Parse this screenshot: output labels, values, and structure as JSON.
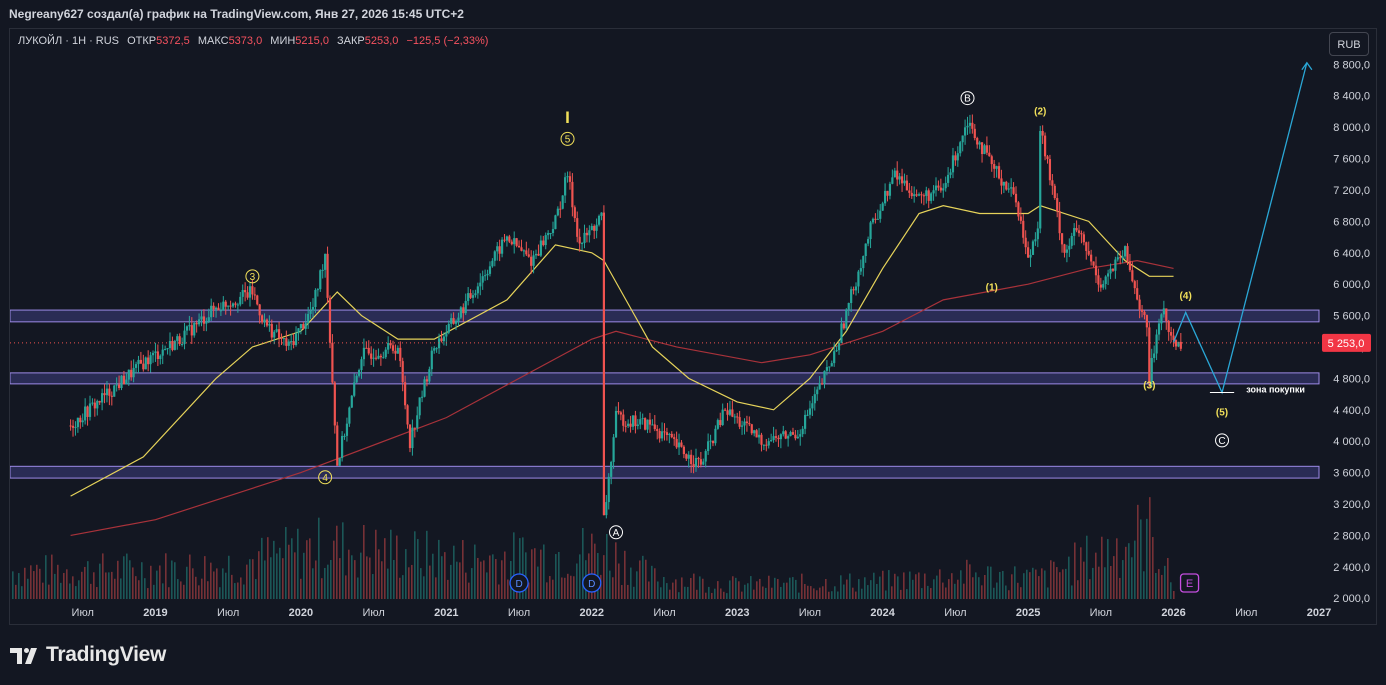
{
  "header": {
    "attribution": "Negreany627 создал(а) график на TradingView.com, Янв 27, 2026 15:45 UTC+2"
  },
  "legend": {
    "symbol": "ЛУКОЙЛ · 1H · RUS",
    "open_label": "ОТКР",
    "open": "5372,5",
    "high_label": "МАКС",
    "high": "5373,0",
    "low_label": "МИН",
    "low": "5215,0",
    "close_label": "ЗАКР",
    "close": "5253,0",
    "change": "−125,5 (−2,33%)"
  },
  "currency_button": "RUB",
  "footer": {
    "logo_text": "TradingView"
  },
  "colors": {
    "background": "#131722",
    "up": "#26a69a",
    "down": "#ef5350",
    "ma_fast": "#e6d35a",
    "ma_slow": "#a8323a",
    "zone_fill": "#2a2c55",
    "zone_border": "#9c8ae6",
    "projection": "#2aa7d6",
    "wave_label": "#f1e05a"
  },
  "chart_data": {
    "type": "candlestick",
    "series": [
      {
        "name": "ЛУКОЙЛ",
        "kind": "price",
        "path_x": [
          "2018-06",
          "2018-09",
          "2018-12",
          "2019-03",
          "2019-06",
          "2019-09",
          "2019-10",
          "2019-12",
          "2020-02",
          "2020-03",
          "2020-04",
          "2020-06",
          "2020-09",
          "2020-10",
          "2020-12",
          "2021-02",
          "2021-04",
          "2021-06",
          "2021-08",
          "2021-10",
          "2021-11",
          "2021-12",
          "2022-01",
          "2022-02",
          "2022-02",
          "2022-03",
          "2022-06",
          "2022-09",
          "2022-10",
          "2022-12",
          "2023-03",
          "2023-06",
          "2023-07",
          "2023-09",
          "2023-12",
          "2024-02",
          "2024-04",
          "2024-06",
          "2024-08",
          "2024-09",
          "2024-10",
          "2024-12",
          "2025-01",
          "2025-02",
          "2025-02",
          "2025-04",
          "2025-05",
          "2025-07",
          "2025-09",
          "2025-11",
          "2025-11",
          "2025-12",
          "2026-01"
        ],
        "path_y": [
          4200,
          4600,
          5000,
          5300,
          5700,
          5900,
          5500,
          5200,
          5700,
          6400,
          3700,
          5100,
          5200,
          4000,
          5200,
          5600,
          6100,
          6600,
          6300,
          6800,
          7400,
          6500,
          6700,
          6900,
          3000,
          4300,
          4200,
          3800,
          3700,
          4400,
          4000,
          4100,
          4400,
          5100,
          6700,
          7400,
          7100,
          7200,
          8100,
          7800,
          7500,
          7100,
          6300,
          6900,
          8000,
          6400,
          6700,
          6000,
          6400,
          5300,
          4800,
          5700,
          5250
        ],
        "ohlc_last": {
          "open": 5372.5,
          "high": 5373.0,
          "low": 5215.0,
          "close": 5253.0
        }
      },
      {
        "name": "",
        "kind": "moving_average_fast",
        "x": [
          "2018-06",
          "2018-12",
          "2019-06",
          "2019-09",
          "2020-01",
          "2020-04",
          "2020-06",
          "2020-09",
          "2020-12",
          "2021-06",
          "2021-10",
          "2022-01",
          "2022-02",
          "2022-06",
          "2022-09",
          "2023-01",
          "2023-04",
          "2023-07",
          "2023-10",
          "2024-01",
          "2024-04",
          "2024-06",
          "2024-09",
          "2025-01",
          "2025-02",
          "2025-06",
          "2025-09",
          "2025-11",
          "2026-01"
        ],
        "y": [
          3300,
          3800,
          4800,
          5200,
          5400,
          5900,
          5600,
          5300,
          5300,
          5800,
          6500,
          6400,
          6300,
          5200,
          4800,
          4500,
          4400,
          4800,
          5400,
          6200,
          6900,
          7000,
          6900,
          6900,
          7000,
          6800,
          6300,
          6100,
          6100
        ]
      },
      {
        "name": "",
        "kind": "moving_average_slow",
        "x": [
          "2018-06",
          "2019-01",
          "2020-01",
          "2021-01",
          "2022-01",
          "2022-03",
          "2022-08",
          "2023-03",
          "2023-07",
          "2024-01",
          "2024-06",
          "2025-01",
          "2025-06",
          "2025-10",
          "2026-01"
        ],
        "y": [
          2800,
          3000,
          3600,
          4300,
          5300,
          5400,
          5200,
          5000,
          5100,
          5400,
          5800,
          6000,
          6200,
          6300,
          6200
        ]
      },
      {
        "name": "",
        "kind": "volume",
        "x": [
          "2018-06",
          "2019-06",
          "2020-03",
          "2021-03",
          "2022-02",
          "2022-06",
          "2023-01",
          "2024-01",
          "2024-08",
          "2025-02",
          "2025-11",
          "2026-01"
        ],
        "y": [
          40,
          45,
          75,
          55,
          70,
          30,
          20,
          25,
          35,
          30,
          95,
          15
        ]
      }
    ],
    "annotations": [
      {
        "text": "4",
        "style": "circled",
        "x": "2020-03",
        "y": 3540
      },
      {
        "text": "3",
        "style": "circled",
        "x": "2019-09",
        "y": 6100
      },
      {
        "text": "5",
        "style": "circled",
        "x": "2021-11",
        "y": 7850
      },
      {
        "text": "I",
        "style": "plain",
        "x": "2021-11",
        "y": 8050
      },
      {
        "text": "A",
        "style": "circled",
        "x": "2022-03",
        "y": 2840
      },
      {
        "text": "B",
        "style": "circled",
        "x": "2024-08",
        "y": 8370
      },
      {
        "text": "(2)",
        "style": "plain",
        "x": "2025-02",
        "y": 8160
      },
      {
        "text": "(1)",
        "style": "plain",
        "x": "2024-10",
        "y": 5920
      },
      {
        "text": "(3)",
        "style": "plain",
        "x": "2025-11",
        "y": 4670
      },
      {
        "text": "(4)",
        "style": "plain",
        "x": "2026-02",
        "y": 5810
      },
      {
        "text": "(5)",
        "style": "plain",
        "x": "2026-05",
        "y": 4330
      },
      {
        "text": "C",
        "style": "circled",
        "x": "2026-05",
        "y": 4010
      },
      {
        "text": "зона покупки",
        "style": "label",
        "x": "2026-07",
        "y": 4620
      }
    ],
    "zones": [
      {
        "from": 5520,
        "to": 5670
      },
      {
        "from": 4730,
        "to": 4870
      },
      {
        "from": 3530,
        "to": 3680
      }
    ],
    "projection": {
      "x": [
        "2026-01",
        "2026-02",
        "2026-05",
        "2026-12"
      ],
      "y": [
        5260,
        5640,
        4620,
        8820
      ]
    },
    "buy_line": {
      "x": [
        "2026-04",
        "2026-06"
      ],
      "y": 4620
    },
    "dividends": {
      "label": "D",
      "x": [
        "2021-07",
        "2022-01"
      ]
    },
    "earnings": {
      "label": "E",
      "x": [
        "2026-01"
      ]
    },
    "xaxis": {
      "ticks": [
        {
          "label": "Июл",
          "x": "2018-07"
        },
        {
          "label": "2019",
          "x": "2019-01"
        },
        {
          "label": "Июл",
          "x": "2019-07"
        },
        {
          "label": "2020",
          "x": "2020-01"
        },
        {
          "label": "Июл",
          "x": "2020-07"
        },
        {
          "label": "2021",
          "x": "2021-01"
        },
        {
          "label": "Июл",
          "x": "2021-07"
        },
        {
          "label": "2022",
          "x": "2022-01"
        },
        {
          "label": "Июл",
          "x": "2022-07"
        },
        {
          "label": "2023",
          "x": "2023-01"
        },
        {
          "label": "Июл",
          "x": "2023-07"
        },
        {
          "label": "2024",
          "x": "2024-01"
        },
        {
          "label": "Июл",
          "x": "2024-07"
        },
        {
          "label": "2025",
          "x": "2025-01"
        },
        {
          "label": "Июл",
          "x": "2025-07"
        },
        {
          "label": "2026",
          "x": "2026-01"
        },
        {
          "label": "Июл",
          "x": "2026-07"
        },
        {
          "label": "2027",
          "x": "2027-01"
        }
      ],
      "range": [
        "2018-01",
        "2027-01"
      ]
    },
    "yaxis": {
      "ticks": [
        "2 000,0",
        "2 400,0",
        "2 800,0",
        "3 200,0",
        "3 600,0",
        "4 000,0",
        "4 400,0",
        "4 800,0",
        "5 200,0",
        "5 600,0",
        "6 000,0",
        "6 400,0",
        "6 800,0",
        "7 200,0",
        "7 600,0",
        "8 000,0",
        "8 400,0",
        "8 800,0"
      ],
      "tick_values": [
        2000,
        2400,
        2800,
        3200,
        3600,
        4000,
        4400,
        4800,
        5200,
        5600,
        6000,
        6400,
        6800,
        7200,
        7600,
        8000,
        8400,
        8800
      ],
      "range": [
        1990,
        9250
      ],
      "scale": "linear"
    },
    "last_price": {
      "label": "5 253,0",
      "value": 5253
    },
    "grid": false
  }
}
